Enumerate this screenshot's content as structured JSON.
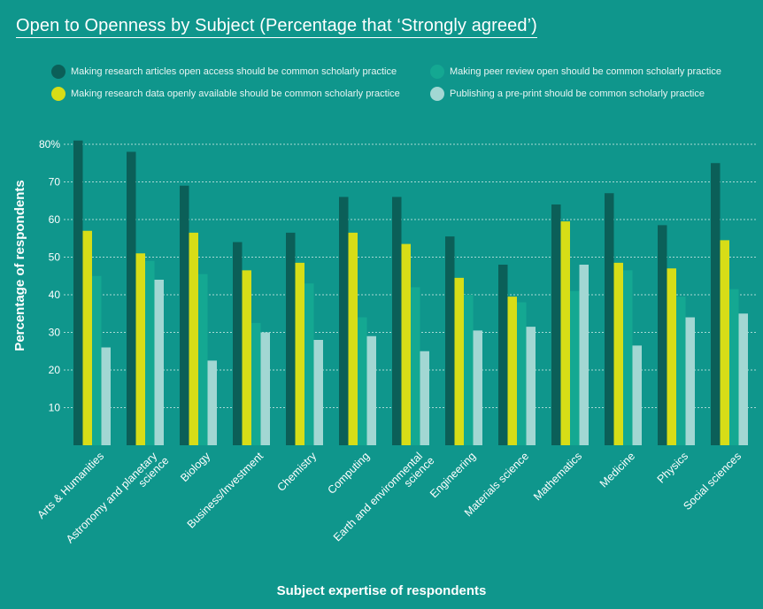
{
  "title": "Open to Openness by Subject (Percentage that ‘Strongly agreed’)",
  "colors": {
    "background": "#0f968c",
    "series": [
      "#0b5f58",
      "#d7dd17",
      "#14a892",
      "#a2d7d3"
    ]
  },
  "chart_data": {
    "type": "bar",
    "title": "Open to Openness by Subject (Percentage that ‘Strongly agreed’)",
    "xlabel": "Subject expertise of respondents",
    "ylabel": "Percentage of respondents",
    "ylim": [
      0,
      80
    ],
    "yticks": [
      10,
      20,
      30,
      40,
      50,
      60,
      70,
      80
    ],
    "ytick_labels": [
      "10",
      "20",
      "30",
      "40",
      "50",
      "60",
      "70",
      "80%"
    ],
    "grid": true,
    "legend_position": "top",
    "categories": [
      "Arts & Humanities",
      "Astronomy and planetary science",
      "Biology",
      "Business/Investment",
      "Chemistry",
      "Computing",
      "Earth and environmental science",
      "Engineering",
      "Materials science",
      "Mathematics",
      "Medicine",
      "Physics",
      "Social sciences"
    ],
    "category_lines": [
      [
        "Arts & Humanities"
      ],
      [
        "Astronomy and planetary",
        "science"
      ],
      [
        "Biology"
      ],
      [
        "Business/Investment"
      ],
      [
        "Chemistry"
      ],
      [
        "Computing"
      ],
      [
        "Earth and environmental",
        "science"
      ],
      [
        "Engineering"
      ],
      [
        "Materials science"
      ],
      [
        "Mathematics"
      ],
      [
        "Medicine"
      ],
      [
        "Physics"
      ],
      [
        "Social sciences"
      ]
    ],
    "series": [
      {
        "name": "Making research articles open access should be common scholarly practice",
        "values": [
          81,
          78,
          69,
          54,
          56.5,
          66,
          66,
          55.5,
          48,
          64,
          67,
          58.5,
          75
        ]
      },
      {
        "name": "Making research data openly available should be common scholarly practice",
        "values": [
          57,
          51,
          56.5,
          46.5,
          48.5,
          56.5,
          53.5,
          44.5,
          39.5,
          59.5,
          48.5,
          47,
          54.5
        ]
      },
      {
        "name": "Making peer review open should be common scholarly practice",
        "values": [
          45,
          49,
          45.5,
          32.5,
          43,
          34,
          42,
          40,
          38,
          41,
          46.5,
          39.5,
          41.5
        ]
      },
      {
        "name": "Publishing a pre-print should be common scholarly practice",
        "values": [
          26,
          44,
          22.5,
          30,
          28,
          29,
          25,
          30.5,
          31.5,
          48,
          26.5,
          34,
          35
        ]
      }
    ]
  }
}
